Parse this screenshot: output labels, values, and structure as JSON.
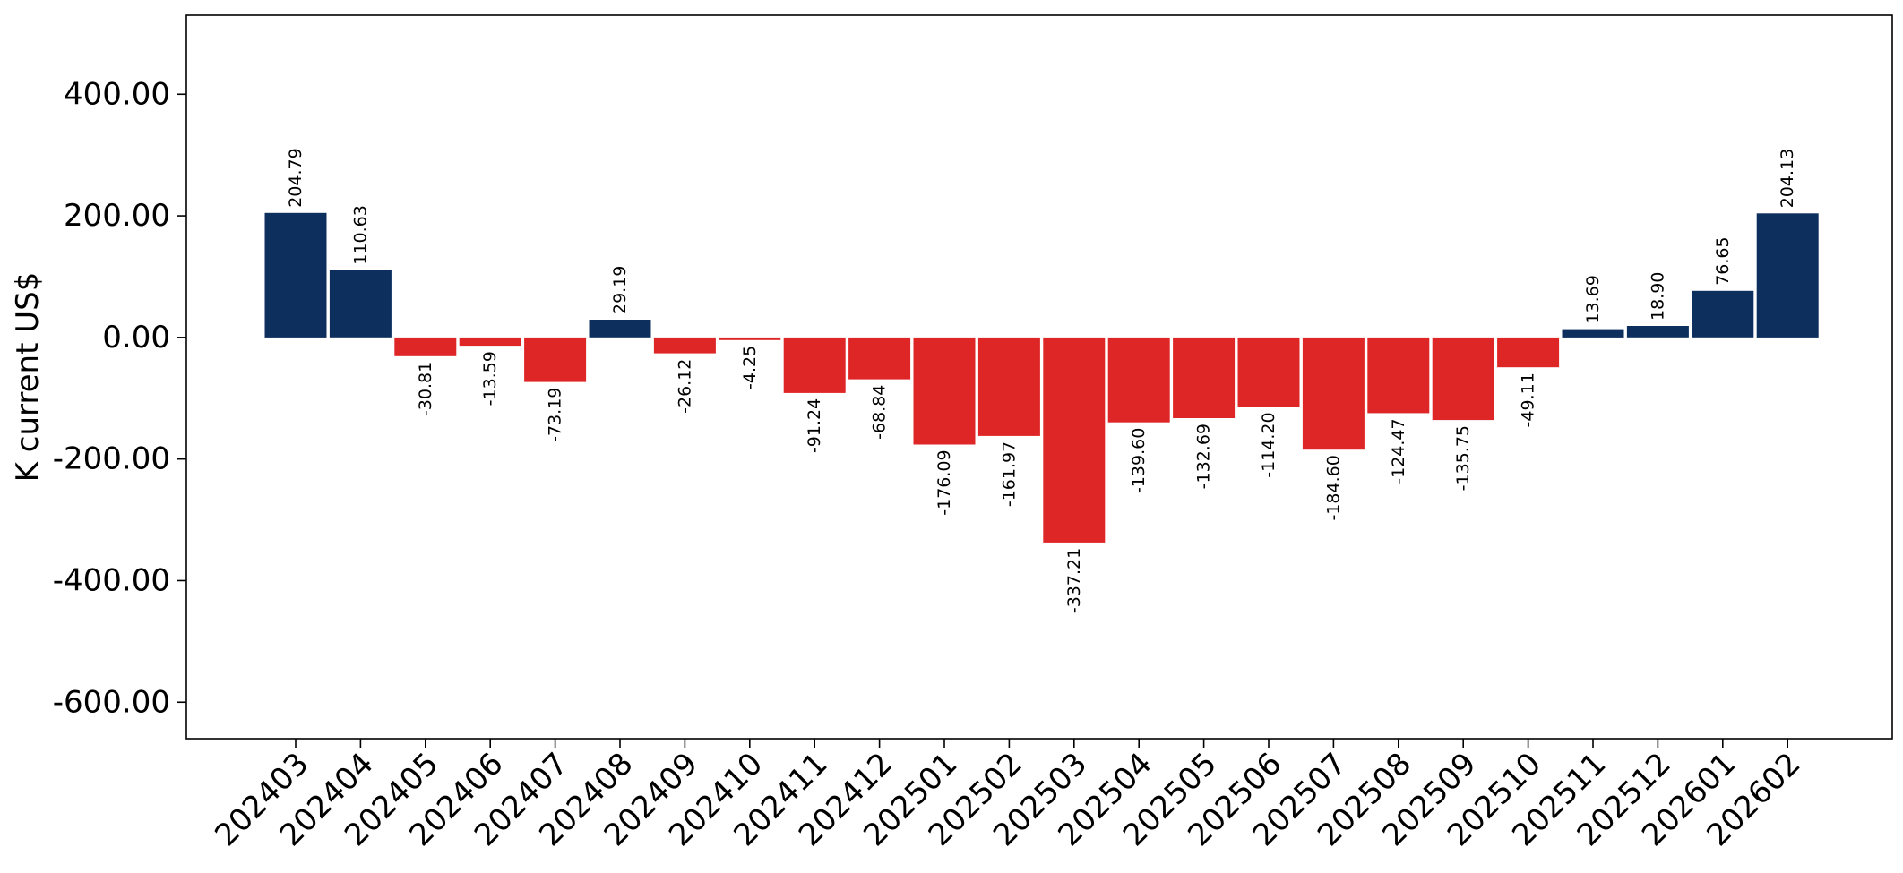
{
  "chart_data": {
    "type": "bar",
    "ylabel": "K current US$",
    "xlabel": "",
    "title": "",
    "ylim": [
      -660,
      530
    ],
    "y_ticks": [
      -600,
      -400,
      -200,
      0,
      200,
      400
    ],
    "y_tick_format": "2 decimals",
    "grid": false,
    "positive_color": "#0d2f5e",
    "negative_color": "#de2627",
    "categories": [
      "202403",
      "202404",
      "202405",
      "202406",
      "202407",
      "202408",
      "202409",
      "202410",
      "202411",
      "202412",
      "202501",
      "202502",
      "202503",
      "202504",
      "202505",
      "202506",
      "202507",
      "202508",
      "202509",
      "202510",
      "202511",
      "202512",
      "202601",
      "202602"
    ],
    "values": [
      204.79,
      110.63,
      -30.81,
      -13.59,
      -73.19,
      29.19,
      -26.12,
      -4.25,
      -91.24,
      -68.84,
      -176.09,
      -161.97,
      -337.21,
      -139.6,
      -132.69,
      -114.2,
      -184.6,
      -124.47,
      -135.75,
      -49.11,
      13.69,
      18.9,
      76.65,
      204.13
    ],
    "data_labels": [
      "204.79",
      "110.63",
      "-30.81",
      "-13.59",
      "-73.19",
      "29.19",
      "-26.12",
      "-4.25",
      "-91.24",
      "-68.84",
      "-176.09",
      "-161.97",
      "-337.21",
      "-139.60",
      "-132.69",
      "-114.20",
      "-184.60",
      "-124.47",
      "-135.75",
      "-49.11",
      "13.69",
      "18.90",
      "76.65",
      "204.13"
    ]
  }
}
